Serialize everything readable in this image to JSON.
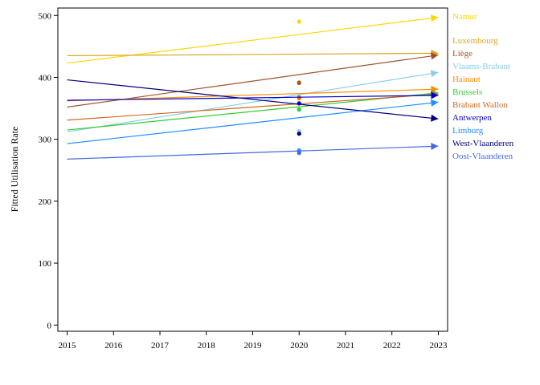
{
  "chart_data": {
    "type": "line",
    "title": "",
    "xlabel": "",
    "ylabel": "Fitted Utilisation Rate",
    "x_ticks": [
      "2015",
      "2016",
      "2017",
      "2018",
      "2019",
      "2020",
      "2021",
      "2022",
      "2023"
    ],
    "y_ticks": [
      "0",
      "100",
      "200",
      "300",
      "400",
      "500"
    ],
    "xlim": [
      2014.8,
      2023.2
    ],
    "ylim": [
      -10,
      512
    ],
    "grid": false,
    "legend": "right",
    "series": [
      {
        "name": "Namur",
        "color": "#FFD700",
        "x": [
          2015,
          2023
        ],
        "y": [
          423,
          497
        ],
        "point": {
          "x": 2020,
          "y": 490
        }
      },
      {
        "name": "Luxembourg",
        "color": "#DAA520",
        "x": [
          2015,
          2023
        ],
        "y": [
          435,
          439
        ],
        "point": {
          "x": 2020,
          "y": 392
        }
      },
      {
        "name": "Liège",
        "color": "#A0522D",
        "x": [
          2015,
          2023
        ],
        "y": [
          352,
          436
        ],
        "point": {
          "x": 2020,
          "y": 391
        }
      },
      {
        "name": "Vlaams-Brabant",
        "color": "#87CEEB",
        "x": [
          2015,
          2023
        ],
        "y": [
          312,
          408
        ],
        "point": {
          "x": 2020,
          "y": 313
        }
      },
      {
        "name": "Hainaut",
        "color": "#FF8C00",
        "x": [
          2015,
          2023
        ],
        "y": [
          362,
          381
        ],
        "point": {
          "x": 2020,
          "y": 366
        }
      },
      {
        "name": "Brussels",
        "color": "#32CD32",
        "x": [
          2015,
          2023
        ],
        "y": [
          315,
          375
        ],
        "point": {
          "x": 2020,
          "y": 348
        }
      },
      {
        "name": "Brabant Wallon",
        "color": "#D2691E",
        "x": [
          2015,
          2023
        ],
        "y": [
          331,
          373
        ],
        "point": {
          "x": 2020,
          "y": 368
        }
      },
      {
        "name": "Antwerpen",
        "color": "#0000CD",
        "x": [
          2015,
          2023
        ],
        "y": [
          363,
          371
        ],
        "point": {
          "x": 2020,
          "y": 358
        }
      },
      {
        "name": "Limburg",
        "color": "#1E90FF",
        "x": [
          2015,
          2023
        ],
        "y": [
          293,
          360
        ],
        "point": {
          "x": 2020,
          "y": 282
        }
      },
      {
        "name": "West-Vlaanderen",
        "color": "#000080",
        "x": [
          2015,
          2023
        ],
        "y": [
          396,
          333
        ],
        "point": {
          "x": 2020,
          "y": 309
        }
      },
      {
        "name": "Oost-Vlaanderen",
        "color": "#4169E1",
        "x": [
          2015,
          2023
        ],
        "y": [
          268,
          289
        ],
        "point": {
          "x": 2020,
          "y": 278
        }
      }
    ]
  }
}
